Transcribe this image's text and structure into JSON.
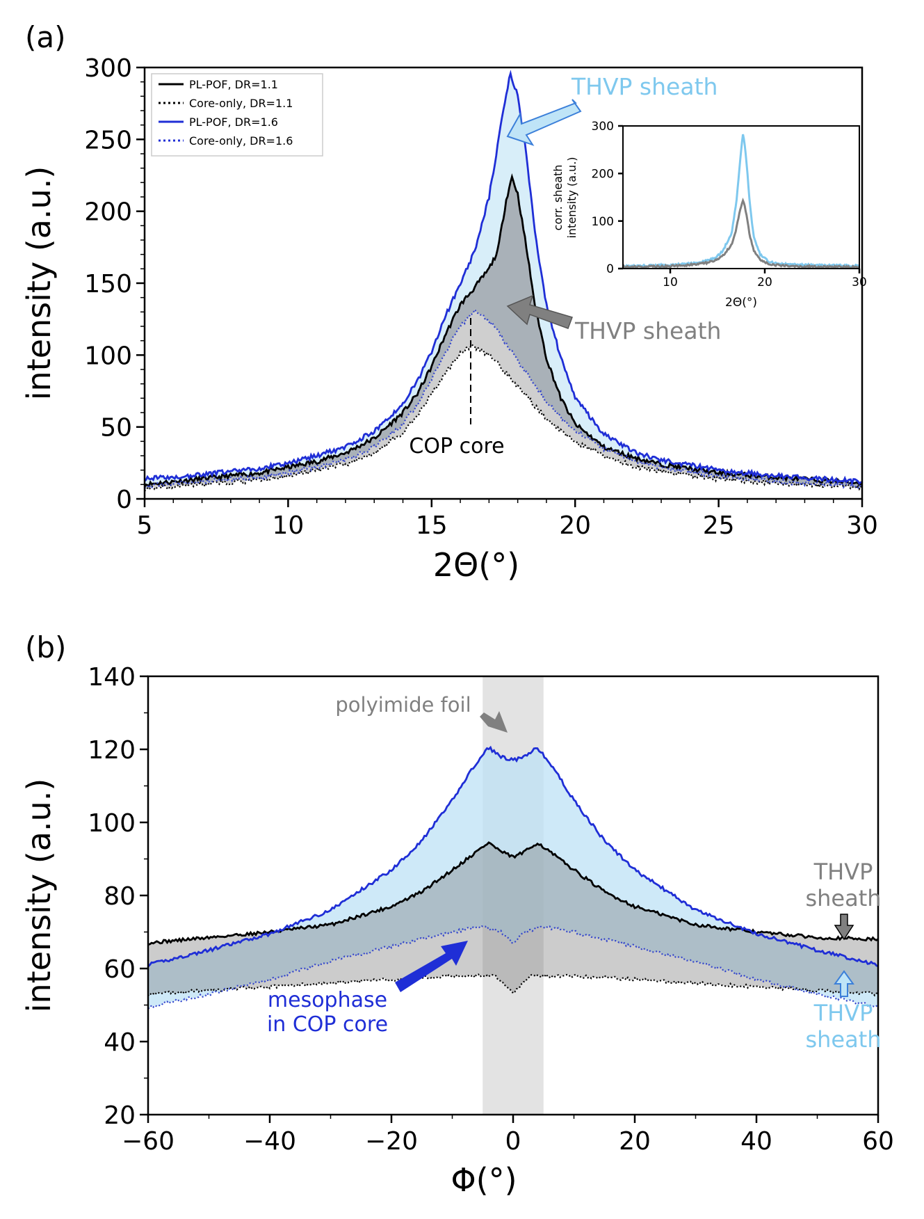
{
  "chart_data": [
    {
      "panel_label": "(a)",
      "type": "line",
      "xlabel": "2Θ(°)",
      "ylabel": "intensity (a.u.)",
      "xlim": [
        5,
        30
      ],
      "ylim": [
        0,
        300
      ],
      "xticks": [
        5,
        10,
        15,
        20,
        25,
        30
      ],
      "yticks": [
        0,
        50,
        100,
        150,
        200,
        250,
        300
      ],
      "legend_position": "top-left",
      "series": [
        {
          "name": "PL-POF, DR=1.1",
          "color": "#000000",
          "style": "solid",
          "points": [
            [
              5,
              10
            ],
            [
              6,
              12
            ],
            [
              7,
              14
            ],
            [
              8,
              16
            ],
            [
              9,
              18
            ],
            [
              10,
              22
            ],
            [
              11,
              26
            ],
            [
              12,
              32
            ],
            [
              13,
              42
            ],
            [
              14,
              60
            ],
            [
              14.5,
              73
            ],
            [
              15,
              92
            ],
            [
              15.5,
              115
            ],
            [
              16,
              135
            ],
            [
              16.5,
              147
            ],
            [
              17,
              160
            ],
            [
              17.3,
              172
            ],
            [
              17.6,
              208
            ],
            [
              17.8,
              224
            ],
            [
              18,
              212
            ],
            [
              18.3,
              175
            ],
            [
              18.6,
              135
            ],
            [
              19,
              98
            ],
            [
              19.5,
              70
            ],
            [
              20,
              52
            ],
            [
              21,
              36
            ],
            [
              22,
              29
            ],
            [
              23,
              24
            ],
            [
              25,
              18
            ],
            [
              27,
              15
            ],
            [
              30,
              11
            ]
          ]
        },
        {
          "name": "Core-only, DR=1.1",
          "color": "#000000",
          "style": "dotted",
          "points": [
            [
              5,
              7
            ],
            [
              7,
              10
            ],
            [
              9,
              13
            ],
            [
              10,
              16
            ],
            [
              11,
              20
            ],
            [
              12,
              24
            ],
            [
              13,
              32
            ],
            [
              14,
              46
            ],
            [
              14.5,
              58
            ],
            [
              15,
              73
            ],
            [
              15.5,
              88
            ],
            [
              16,
              101
            ],
            [
              16.4,
              107
            ],
            [
              17,
              100
            ],
            [
              17.5,
              90
            ],
            [
              18,
              78
            ],
            [
              18.5,
              67
            ],
            [
              19,
              56
            ],
            [
              19.5,
              47
            ],
            [
              20,
              40
            ],
            [
              21,
              30
            ],
            [
              22,
              23
            ],
            [
              23,
              19
            ],
            [
              25,
              14
            ],
            [
              27,
              11
            ],
            [
              30,
              8
            ]
          ]
        },
        {
          "name": "PL-POF, DR=1.6",
          "color": "#1f2ed6",
          "style": "solid",
          "points": [
            [
              5,
              14
            ],
            [
              6,
              15
            ],
            [
              7,
              17
            ],
            [
              8,
              19
            ],
            [
              9,
              21
            ],
            [
              10,
              25
            ],
            [
              11,
              30
            ],
            [
              12,
              36
            ],
            [
              13,
              47
            ],
            [
              14,
              66
            ],
            [
              14.5,
              82
            ],
            [
              15,
              102
            ],
            [
              15.5,
              128
            ],
            [
              16,
              150
            ],
            [
              16.5,
              172
            ],
            [
              17,
              210
            ],
            [
              17.3,
              245
            ],
            [
              17.5,
              272
            ],
            [
              17.75,
              296
            ],
            [
              18,
              280
            ],
            [
              18.3,
              240
            ],
            [
              18.6,
              185
            ],
            [
              19,
              135
            ],
            [
              19.5,
              98
            ],
            [
              20,
              70
            ],
            [
              21,
              45
            ],
            [
              22,
              33
            ],
            [
              23,
              27
            ],
            [
              25,
              20
            ],
            [
              27,
              16
            ],
            [
              30,
              12
            ]
          ]
        },
        {
          "name": "Core-only, DR=1.6",
          "color": "#3344cc",
          "style": "dotted",
          "points": [
            [
              5,
              9
            ],
            [
              7,
              12
            ],
            [
              9,
              15
            ],
            [
              10,
              18
            ],
            [
              11,
              22
            ],
            [
              12,
              27
            ],
            [
              13,
              36
            ],
            [
              14,
              52
            ],
            [
              14.5,
              66
            ],
            [
              15,
              84
            ],
            [
              15.5,
              103
            ],
            [
              16,
              120
            ],
            [
              16.5,
              131
            ],
            [
              17,
              124
            ],
            [
              17.5,
              111
            ],
            [
              18,
              96
            ],
            [
              18.5,
              82
            ],
            [
              19,
              68
            ],
            [
              19.5,
              57
            ],
            [
              20,
              48
            ],
            [
              21,
              35
            ],
            [
              22,
              27
            ],
            [
              23,
              22
            ],
            [
              25,
              16
            ],
            [
              27,
              12
            ],
            [
              30,
              9
            ]
          ]
        }
      ],
      "annotations": [
        {
          "text": "THVP sheath",
          "color": "#7ec8ee"
        },
        {
          "text": "THVP sheath",
          "color": "#808080"
        },
        {
          "text": "COP core",
          "color": "#000000"
        }
      ],
      "inset": {
        "xlabel": "2Θ(°)",
        "ylabel_line1": "corr. sheath",
        "ylabel_line2": "intensity (a.u.)",
        "xlim": [
          5,
          30
        ],
        "ylim": [
          0,
          300
        ],
        "xticks": [
          10,
          20,
          30
        ],
        "yticks": [
          0,
          100,
          200,
          300
        ],
        "series": [
          {
            "name": "DR=1.6 sheath",
            "color": "#7ec8ee",
            "points": [
              [
                5,
                5
              ],
              [
                10,
                7
              ],
              [
                13,
                12
              ],
              [
                14.5,
                20
              ],
              [
                15.5,
                35
              ],
              [
                16.5,
                75
              ],
              [
                17,
                140
              ],
              [
                17.4,
                230
              ],
              [
                17.7,
                285
              ],
              [
                18,
                240
              ],
              [
                18.4,
                140
              ],
              [
                18.8,
                70
              ],
              [
                19.5,
                30
              ],
              [
                20.5,
                14
              ],
              [
                22,
                9
              ],
              [
                25,
                7
              ],
              [
                30,
                6
              ]
            ]
          },
          {
            "name": "DR=1.1 sheath",
            "color": "#808080",
            "points": [
              [
                5,
                3
              ],
              [
                10,
                5
              ],
              [
                13,
                9
              ],
              [
                14.5,
                15
              ],
              [
                15.5,
                25
              ],
              [
                16.5,
                50
              ],
              [
                17,
                85
              ],
              [
                17.4,
                125
              ],
              [
                17.7,
                145
              ],
              [
                18,
                120
              ],
              [
                18.4,
                70
              ],
              [
                18.8,
                40
              ],
              [
                19.5,
                18
              ],
              [
                20.5,
                9
              ],
              [
                22,
                6
              ],
              [
                25,
                4
              ],
              [
                30,
                3
              ]
            ]
          }
        ]
      }
    },
    {
      "panel_label": "(b)",
      "type": "line",
      "xlabel": "Φ(°)",
      "ylabel": "intensity (a.u.)",
      "xlim": [
        -60,
        60
      ],
      "ylim": [
        20,
        140
      ],
      "xticks": [
        -60,
        -40,
        -20,
        0,
        20,
        40,
        60
      ],
      "yticks": [
        20,
        40,
        60,
        80,
        100,
        120,
        140
      ],
      "shaded_band": [
        -5,
        5
      ],
      "series": [
        {
          "name": "PL-POF, DR=1.1",
          "color": "#000000",
          "style": "solid",
          "points": [
            [
              -60,
              67
            ],
            [
              -50,
              68.5
            ],
            [
              -40,
              70
            ],
            [
              -30,
              72
            ],
            [
              -20,
              77
            ],
            [
              -15,
              81
            ],
            [
              -10,
              87
            ],
            [
              -6,
              92
            ],
            [
              -4,
              94.5
            ],
            [
              -2,
              92
            ],
            [
              0,
              90.5
            ],
            [
              2,
              92
            ],
            [
              4,
              94.5
            ],
            [
              6,
              92
            ],
            [
              10,
              87
            ],
            [
              15,
              81
            ],
            [
              20,
              77
            ],
            [
              30,
              72
            ],
            [
              40,
              70
            ],
            [
              50,
              68.5
            ],
            [
              60,
              68
            ]
          ]
        },
        {
          "name": "Core-only, DR=1.1",
          "color": "#000000",
          "style": "dotted",
          "points": [
            [
              -60,
              53
            ],
            [
              -40,
              55
            ],
            [
              -20,
              57
            ],
            [
              -10,
              58
            ],
            [
              -3,
              58
            ],
            [
              -1,
              55
            ],
            [
              0,
              53
            ],
            [
              1,
              55
            ],
            [
              3,
              58
            ],
            [
              10,
              58
            ],
            [
              20,
              57
            ],
            [
              40,
              55
            ],
            [
              60,
              53
            ]
          ]
        },
        {
          "name": "PL-POF, DR=1.6",
          "color": "#1f2ed6",
          "style": "solid",
          "points": [
            [
              -60,
              61
            ],
            [
              -50,
              65
            ],
            [
              -40,
              69.5
            ],
            [
              -30,
              76
            ],
            [
              -20,
              87
            ],
            [
              -15,
              95
            ],
            [
              -10,
              106
            ],
            [
              -7,
              114
            ],
            [
              -4,
              120.5
            ],
            [
              -2,
              118
            ],
            [
              0,
              117
            ],
            [
              2,
              118
            ],
            [
              4,
              120.5
            ],
            [
              7,
              114
            ],
            [
              10,
              106
            ],
            [
              15,
              95
            ],
            [
              20,
              87
            ],
            [
              30,
              76
            ],
            [
              40,
              69.5
            ],
            [
              50,
              65
            ],
            [
              60,
              61
            ]
          ]
        },
        {
          "name": "Core-only, DR=1.6",
          "color": "#3344cc",
          "style": "dotted",
          "points": [
            [
              -60,
              49.5
            ],
            [
              -50,
              53
            ],
            [
              -40,
              57
            ],
            [
              -30,
              62
            ],
            [
              -20,
              66
            ],
            [
              -10,
              70
            ],
            [
              -5,
              71.5
            ],
            [
              -2,
              70
            ],
            [
              0,
              67
            ],
            [
              2,
              70
            ],
            [
              5,
              71.5
            ],
            [
              10,
              70
            ],
            [
              20,
              66
            ],
            [
              30,
              62
            ],
            [
              40,
              57
            ],
            [
              50,
              53
            ],
            [
              60,
              49.5
            ]
          ]
        }
      ],
      "annotations": [
        {
          "text": "polyimide foil",
          "color": "#808080"
        },
        {
          "text_line1": "mesophase",
          "text_line2": "in COP core",
          "color": "#1f2ed6"
        },
        {
          "text_line1": "THVP",
          "text_line2": "sheath",
          "color": "#808080"
        },
        {
          "text_line1": "THVP",
          "text_line2": "sheath",
          "color": "#7ec8ee"
        }
      ]
    }
  ]
}
